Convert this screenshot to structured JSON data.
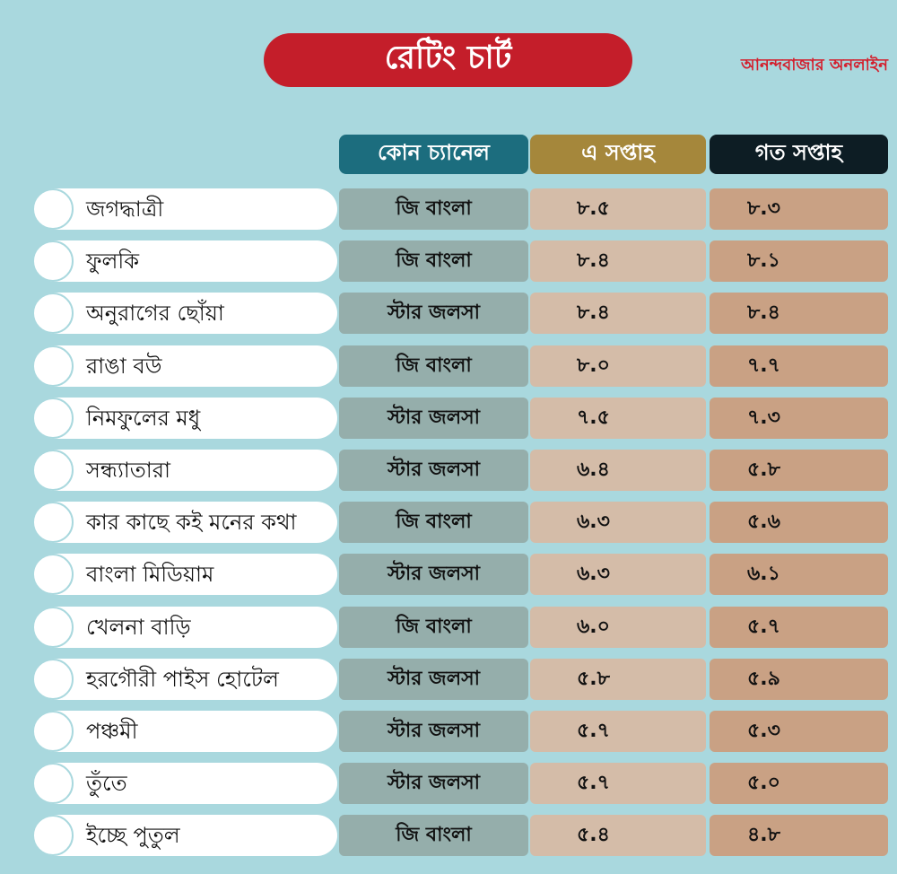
{
  "header": {
    "title": "রেটিং চার্ট",
    "brand": "আনন্দবাজার অনলাইন"
  },
  "columns": {
    "channel": "কোন চ্যানেল",
    "this_week": "এ সপ্তাহ",
    "last_week": "গত সপ্তাহ"
  },
  "rows": [
    {
      "name": "জগদ্ধাত্রী",
      "channel": "জি বাংলা",
      "this_week": "৮.৫",
      "last_week": "৮.৩"
    },
    {
      "name": "ফুলকি",
      "channel": "জি বাংলা",
      "this_week": "৮.৪",
      "last_week": "৮.১"
    },
    {
      "name": "অনুরাগের ছোঁয়া",
      "channel": "স্টার জলসা",
      "this_week": "৮.৪",
      "last_week": "৮.৪"
    },
    {
      "name": "রাঙা বউ",
      "channel": "জি বাংলা",
      "this_week": "৮.০",
      "last_week": "৭.৭"
    },
    {
      "name": "নিমফুলের মধু",
      "channel": "স্টার জলসা",
      "this_week": "৭.৫",
      "last_week": "৭.৩"
    },
    {
      "name": "সন্ধ্যাতারা",
      "channel": "স্টার জলসা",
      "this_week": "৬.৪",
      "last_week": "৫.৮"
    },
    {
      "name": "কার কাছে কই মনের কথা",
      "channel": "জি বাংলা",
      "this_week": "৬.৩",
      "last_week": "৫.৬"
    },
    {
      "name": "বাংলা মিডিয়াম",
      "channel": "স্টার জলসা",
      "this_week": "৬.৩",
      "last_week": "৬.১"
    },
    {
      "name": "খেলনা বাড়ি",
      "channel": "জি বাংলা",
      "this_week": "৬.০",
      "last_week": "৫.৭"
    },
    {
      "name": "হরগৌরী পাইস হোটেল",
      "channel": "স্টার জলসা",
      "this_week": "৫.৮",
      "last_week": "৫.৯"
    },
    {
      "name": "পঞ্চমী",
      "channel": "স্টার জলসা",
      "this_week": "৫.৭",
      "last_week": "৫.৩"
    },
    {
      "name": "তুঁতে",
      "channel": "স্টার জলসা",
      "this_week": "৫.৭",
      "last_week": "৫.০"
    },
    {
      "name": "ইচ্ছে পুতুল",
      "channel": "জি বাংলা",
      "this_week": "৫.৪",
      "last_week": "৪.৮"
    }
  ]
}
